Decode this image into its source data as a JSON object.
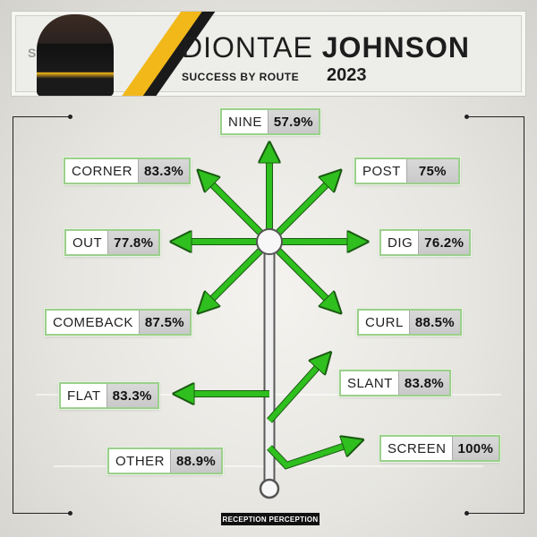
{
  "header": {
    "team_word": "Steelers",
    "first_name": "DIONTAE",
    "last_name": "JOHNSON",
    "subtitle": "SUCCESS BY ROUTE",
    "year": "2023"
  },
  "routes": {
    "nine": {
      "name": "NINE",
      "pct": "57.9%"
    },
    "corner": {
      "name": "CORNER",
      "pct": "83.3%"
    },
    "post": {
      "name": "POST",
      "pct": "75%"
    },
    "out": {
      "name": "OUT",
      "pct": "77.8%"
    },
    "dig": {
      "name": "DIG",
      "pct": "76.2%"
    },
    "comeback": {
      "name": "COMEBACK",
      "pct": "87.5%"
    },
    "curl": {
      "name": "CURL",
      "pct": "88.5%"
    },
    "flat": {
      "name": "FLAT",
      "pct": "83.3%"
    },
    "slant": {
      "name": "SLANT",
      "pct": "83.8%"
    },
    "other": {
      "name": "OTHER",
      "pct": "88.9%"
    },
    "screen": {
      "name": "SCREEN",
      "pct": "100%"
    }
  },
  "logo": {
    "text": "RECEPTION PERCEPTION"
  },
  "colors": {
    "arrow_green": "#2fbf1e",
    "arrow_outline": "#1a5a12",
    "steelers_gold": "#f2b81a",
    "steelers_black": "#1a1a1a"
  }
}
